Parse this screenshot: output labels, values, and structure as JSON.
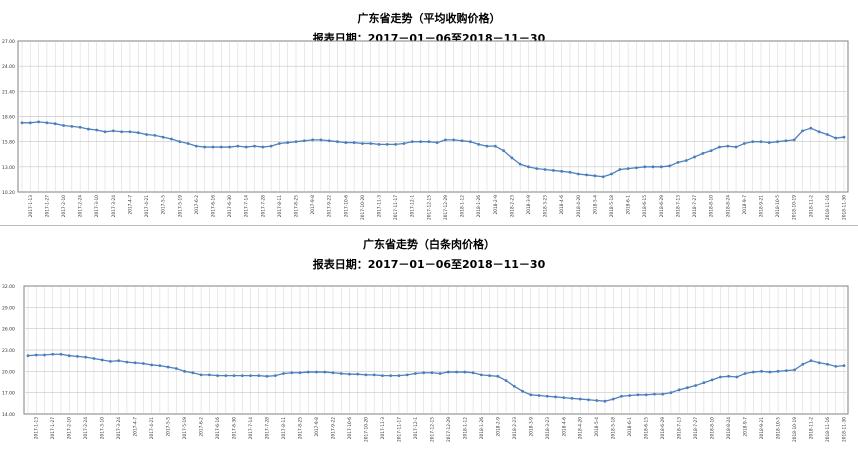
{
  "chart_data": [
    {
      "type": "line",
      "title": "广东省走势（平均收购价格）",
      "subtitle": "报表日期：2017－01－06至2018－11－30",
      "y_ticks": [
        "27.00",
        "24.00",
        "21.40",
        "18.60",
        "15.80",
        "13.00",
        "10.20"
      ],
      "ylim": [
        10.2,
        27.0
      ],
      "x_tick_labels": [
        "2017-1-6",
        "2017-1-13",
        "2017-1-20",
        "2017-1-27",
        "2017-2-3",
        "2017-2-10",
        "2017-2-17",
        "2017-2-24",
        "2017-3-3",
        "2017-3-10",
        "2017-3-17",
        "2017-3-24",
        "2017-3-31",
        "2017-4-7",
        "2017-4-14",
        "2017-4-21",
        "2017-4-28",
        "2017-5-5",
        "2017-5-12",
        "2017-5-19",
        "2017-5-26",
        "2017-6-2",
        "2017-6-9",
        "2017-6-16",
        "2017-6-23",
        "2017-6-30",
        "2017-7-7",
        "2017-7-14",
        "2017-7-21",
        "2017-7-28",
        "2017-8-4",
        "2017-8-11",
        "2017-8-18",
        "2017-8-25",
        "2017-9-1",
        "2017-9-8",
        "2017-9-15",
        "2017-9-22",
        "2017-9-29",
        "2017-10-6",
        "2017-10-13",
        "2017-10-20",
        "2017-10-27",
        "2017-11-3",
        "2017-11-10",
        "2017-11-17",
        "2017-11-24",
        "2017-12-1",
        "2017-12-8",
        "2017-12-15",
        "2017-12-22",
        "2017-12-29",
        "2018-1-5",
        "2018-1-12",
        "2018-1-19",
        "2018-1-26",
        "2018-2-2",
        "2018-2-9",
        "2018-2-16",
        "2018-2-23",
        "2018-3-2",
        "2018-3-9",
        "2018-3-16",
        "2018-3-23",
        "2018-3-30",
        "2018-4-6",
        "2018-4-13",
        "2018-4-20",
        "2018-4-27",
        "2018-5-4",
        "2018-5-11",
        "2018-5-18",
        "2018-5-25",
        "2018-6-1",
        "2018-6-8",
        "2018-6-15",
        "2018-6-22",
        "2018-6-29",
        "2018-7-6",
        "2018-7-13",
        "2018-7-20",
        "2018-7-27",
        "2018-8-3",
        "2018-8-10",
        "2018-8-17",
        "2018-8-24",
        "2018-8-31",
        "2018-9-7",
        "2018-9-14",
        "2018-9-21",
        "2018-9-28",
        "2018-10-5",
        "2018-10-12",
        "2018-10-19",
        "2018-10-26",
        "2018-11-2",
        "2018-11-9",
        "2018-11-16",
        "2018-11-23",
        "2018-11-30"
      ],
      "values": [
        17.9,
        17.9,
        18.0,
        17.9,
        17.8,
        17.6,
        17.5,
        17.4,
        17.2,
        17.1,
        16.9,
        17.0,
        16.9,
        16.9,
        16.8,
        16.6,
        16.5,
        16.3,
        16.1,
        15.8,
        15.6,
        15.3,
        15.2,
        15.2,
        15.2,
        15.2,
        15.3,
        15.2,
        15.3,
        15.2,
        15.3,
        15.6,
        15.7,
        15.8,
        15.9,
        16.0,
        16.0,
        15.9,
        15.8,
        15.7,
        15.7,
        15.6,
        15.6,
        15.5,
        15.5,
        15.5,
        15.6,
        15.8,
        15.8,
        15.8,
        15.7,
        16.0,
        16.0,
        15.9,
        15.8,
        15.5,
        15.3,
        15.3,
        14.8,
        14.0,
        13.3,
        13.0,
        12.8,
        12.7,
        12.6,
        12.5,
        12.4,
        12.2,
        12.1,
        12.0,
        11.9,
        12.2,
        12.7,
        12.8,
        12.9,
        13.0,
        13.0,
        13.0,
        13.1,
        13.5,
        13.7,
        14.1,
        14.5,
        14.8,
        15.2,
        15.3,
        15.2,
        15.6,
        15.8,
        15.8,
        15.7,
        15.8,
        15.9,
        16.0,
        17.0,
        17.3,
        16.9,
        16.6,
        16.2,
        16.3
      ]
    },
    {
      "type": "line",
      "title": "广东省走势（白条肉价格）",
      "subtitle": "报表日期：2017－01－06至2018－11－30",
      "y_ticks": [
        "32.00",
        "29.00",
        "26.00",
        "23.00",
        "20.00",
        "17.00",
        "14.00"
      ],
      "ylim": [
        14.0,
        32.0
      ],
      "x_tick_labels": [
        "2017-1-6",
        "2017-1-13",
        "2017-1-20",
        "2017-1-27",
        "2017-2-3",
        "2017-2-10",
        "2017-2-17",
        "2017-2-24",
        "2017-3-3",
        "2017-3-10",
        "2017-3-17",
        "2017-3-24",
        "2017-3-31",
        "2017-4-7",
        "2017-4-14",
        "2017-4-21",
        "2017-4-28",
        "2017-5-5",
        "2017-5-12",
        "2017-5-19",
        "2017-5-26",
        "2017-6-2",
        "2017-6-9",
        "2017-6-16",
        "2017-6-23",
        "2017-6-30",
        "2017-7-7",
        "2017-7-14",
        "2017-7-21",
        "2017-7-28",
        "2017-8-4",
        "2017-8-11",
        "2017-8-18",
        "2017-8-25",
        "2017-9-1",
        "2017-9-8",
        "2017-9-15",
        "2017-9-22",
        "2017-9-29",
        "2017-10-6",
        "2017-10-13",
        "2017-10-20",
        "2017-10-27",
        "2017-11-3",
        "2017-11-10",
        "2017-11-17",
        "2017-11-24",
        "2017-12-1",
        "2017-12-8",
        "2017-12-15",
        "2017-12-22",
        "2017-12-29",
        "2018-1-5",
        "2018-1-12",
        "2018-1-19",
        "2018-1-26",
        "2018-2-2",
        "2018-2-9",
        "2018-2-16",
        "2018-2-23",
        "2018-3-2",
        "2018-3-9",
        "2018-3-16",
        "2018-3-23",
        "2018-3-30",
        "2018-4-6",
        "2018-4-13",
        "2018-4-20",
        "2018-4-27",
        "2018-5-4",
        "2018-5-11",
        "2018-5-18",
        "2018-5-25",
        "2018-6-1",
        "2018-6-8",
        "2018-6-15",
        "2018-6-22",
        "2018-6-29",
        "2018-7-6",
        "2018-7-13",
        "2018-7-20",
        "2018-7-27",
        "2018-8-3",
        "2018-8-10",
        "2018-8-17",
        "2018-8-24",
        "2018-8-31",
        "2018-9-7",
        "2018-9-14",
        "2018-9-21",
        "2018-9-28",
        "2018-10-5",
        "2018-10-12",
        "2018-10-19",
        "2018-10-26",
        "2018-11-2",
        "2018-11-9",
        "2018-11-16",
        "2018-11-23",
        "2018-11-30"
      ],
      "values": [
        22.2,
        22.3,
        22.3,
        22.4,
        22.4,
        22.2,
        22.1,
        22.0,
        21.8,
        21.6,
        21.4,
        21.5,
        21.3,
        21.2,
        21.1,
        20.9,
        20.8,
        20.6,
        20.4,
        20.0,
        19.8,
        19.5,
        19.5,
        19.4,
        19.4,
        19.4,
        19.4,
        19.4,
        19.4,
        19.3,
        19.4,
        19.7,
        19.8,
        19.8,
        19.9,
        19.9,
        19.9,
        19.8,
        19.7,
        19.6,
        19.6,
        19.5,
        19.5,
        19.4,
        19.4,
        19.4,
        19.5,
        19.7,
        19.8,
        19.8,
        19.7,
        19.9,
        19.9,
        19.9,
        19.8,
        19.5,
        19.4,
        19.3,
        18.7,
        17.9,
        17.2,
        16.7,
        16.6,
        16.5,
        16.4,
        16.3,
        16.2,
        16.1,
        16.0,
        15.9,
        15.8,
        16.1,
        16.5,
        16.6,
        16.7,
        16.7,
        16.8,
        16.8,
        17.0,
        17.4,
        17.7,
        18.0,
        18.4,
        18.8,
        19.2,
        19.3,
        19.2,
        19.7,
        19.9,
        20.0,
        19.9,
        20.0,
        20.1,
        20.2,
        21.0,
        21.5,
        21.2,
        21.0,
        20.7,
        20.8
      ]
    }
  ],
  "colors": {
    "line": "#4f81bd",
    "marker": "#4a7ebb",
    "grid": "#c8c8c8",
    "axis": "#808080"
  }
}
